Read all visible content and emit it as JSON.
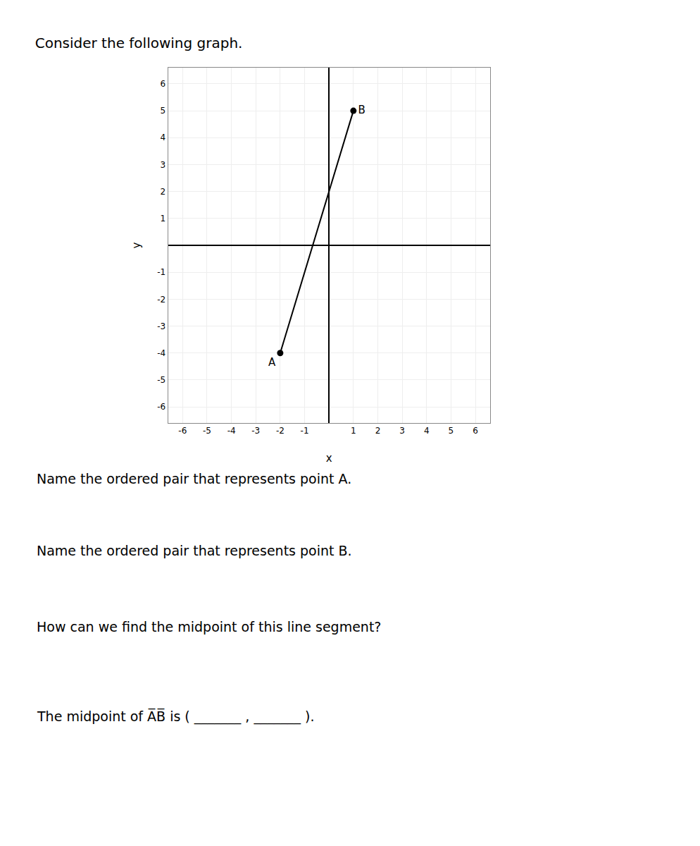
{
  "chart_data": {
    "type": "line",
    "title": "Consider the following graph.",
    "xlabel": "x",
    "ylabel": "y",
    "x": [
      -2,
      1
    ],
    "values": [
      -4,
      5
    ],
    "point_labels": [
      "A",
      "B"
    ],
    "color": "#000000",
    "marker": "circle",
    "xlim": [
      -6.6,
      6.6
    ],
    "ylim": [
      -6.6,
      6.6
    ],
    "xticks": [
      -6,
      -5,
      -4,
      -3,
      -2,
      -1,
      1,
      2,
      3,
      4,
      5,
      6
    ],
    "yticks": [
      -6,
      -5,
      -4,
      -3,
      -2,
      -1,
      1,
      2,
      3,
      4,
      5,
      6
    ],
    "grid": true,
    "annotations": [
      "Name the ordered pair that represents point A.",
      "Name the ordered pair that represents point B.",
      "How can we find the midpoint of this line segment?",
      "The midpoint of A̅B̅ is ( _______ , _______ )."
    ]
  }
}
